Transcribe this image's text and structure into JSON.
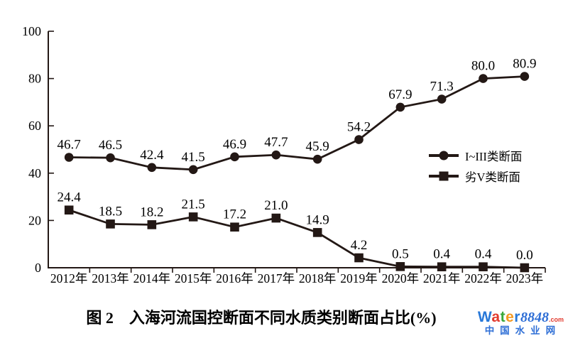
{
  "figure": {
    "title": "图 2　入海河流国控断面不同水质类别断面占比(%)"
  },
  "chart_data": {
    "type": "line",
    "title": "入海河流国控断面不同水质类别断面占比(%)",
    "xlabel": "",
    "ylabel": "",
    "x": [
      "2012年",
      "2013年",
      "2014年",
      "2015年",
      "2016年",
      "2017年",
      "2018年",
      "2019年",
      "2020年",
      "2021年",
      "2022年",
      "2023年"
    ],
    "series": [
      {
        "name": "I~III类断面",
        "marker": "circle",
        "values": [
          46.7,
          46.5,
          42.4,
          41.5,
          46.9,
          47.7,
          45.9,
          54.2,
          67.9,
          71.3,
          80.0,
          80.9
        ]
      },
      {
        "name": "劣V类断面",
        "marker": "square",
        "values": [
          24.4,
          18.5,
          18.2,
          21.5,
          17.2,
          21.0,
          14.9,
          4.2,
          0.5,
          0.4,
          0.4,
          0.0
        ]
      }
    ],
    "ylim": [
      0,
      100
    ],
    "yticks": [
      0,
      20,
      40,
      60,
      80,
      100
    ],
    "grid": false,
    "legend_position": "right-middle",
    "data_labels": true,
    "label_decimals": 1,
    "ink_color": "#231815"
  },
  "watermark": {
    "line1_letters": [
      {
        "t": "W",
        "c": "#2878d8"
      },
      {
        "t": "a",
        "c": "#e23a2e"
      },
      {
        "t": "t",
        "c": "#3aa83a"
      },
      {
        "t": "e",
        "c": "#f59a23"
      },
      {
        "t": "r",
        "c": "#2878d8"
      }
    ],
    "line1_number": "8848",
    "line1_suffix": ".com",
    "number_color": "#2f6fd6",
    "suffix_color": "#e23a2e",
    "line2": "中国水业网",
    "line2_color": "#2f6fd6"
  }
}
